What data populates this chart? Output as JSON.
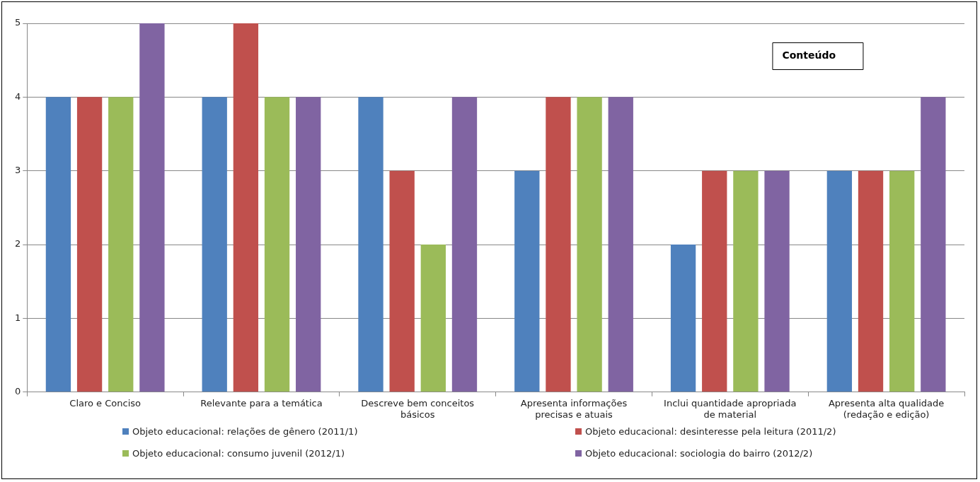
{
  "chart_data": {
    "type": "bar",
    "title": "Conteúdo",
    "categories": [
      "Claro e Conciso",
      "Relevante para a temática",
      "Descreve bem conceitos básicos",
      "Apresenta informações precisas e atuais",
      "Inclui quantidade apropriada de material",
      "Apresenta alta qualidade (redação e edição)"
    ],
    "series": [
      {
        "name": "Objeto educacional: relações de gênero (2011/1)",
        "color": "#4f81bd",
        "values": [
          4,
          4,
          4,
          3,
          2,
          3
        ]
      },
      {
        "name": "Objeto educacional: desinteresse pela leitura (2011/2)",
        "color": "#c0504d",
        "values": [
          4,
          5,
          3,
          4,
          3,
          3
        ]
      },
      {
        "name": "Objeto educacional: consumo juvenil (2012/1)",
        "color": "#9bbb59",
        "values": [
          4,
          4,
          2,
          4,
          3,
          3
        ]
      },
      {
        "name": "Objeto educacional: sociologia do bairro (2012/2)",
        "color": "#8064a2",
        "values": [
          5,
          4,
          4,
          4,
          3,
          4
        ]
      }
    ],
    "ylim": [
      0,
      5
    ],
    "yticks": [
      0,
      1,
      2,
      3,
      4,
      5
    ],
    "grid": "y",
    "legend": "bottom"
  }
}
